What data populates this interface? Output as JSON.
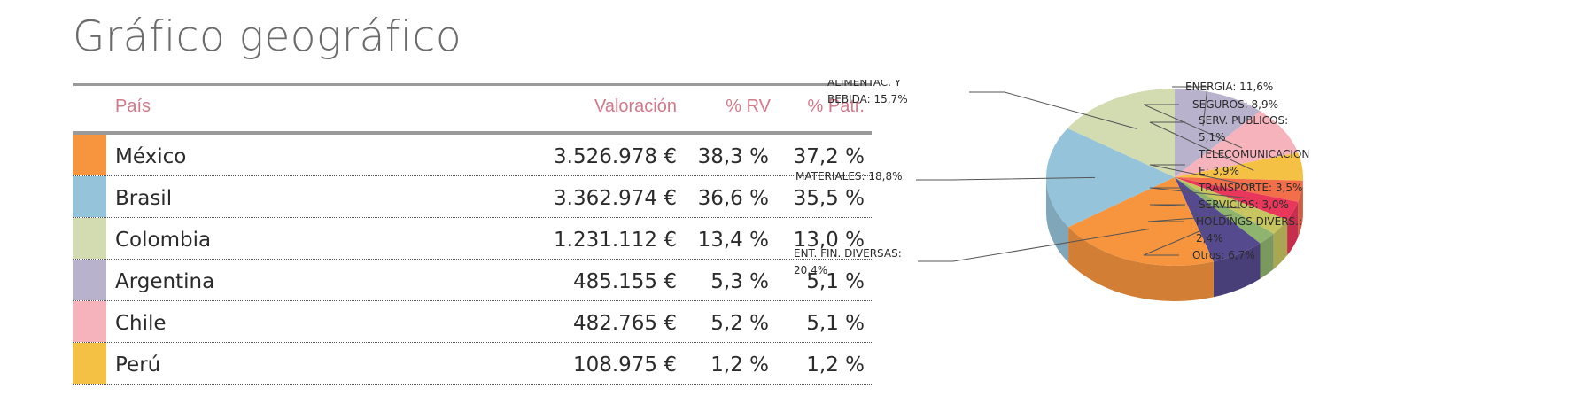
{
  "title": "Gráfico geográfico",
  "table": {
    "headers": {
      "country": "País",
      "valuation": "Valoración",
      "pct_rv": "% RV",
      "pct_patr": "% Patr."
    },
    "rows": [
      {
        "country": "México",
        "valuation": "3.526.978 €",
        "pct_rv": "38,3 %",
        "pct_patr": "37,2 %",
        "color": "#f7953e"
      },
      {
        "country": "Brasil",
        "valuation": "3.362.974 €",
        "pct_rv": "36,6 %",
        "pct_patr": "35,5 %",
        "color": "#95c3da"
      },
      {
        "country": "Colombia",
        "valuation": "1.231.112 €",
        "pct_rv": "13,4 %",
        "pct_patr": "13,0 %",
        "color": "#d3dbb0"
      },
      {
        "country": "Argentina",
        "valuation": "485.155 €",
        "pct_rv": "5,3 %",
        "pct_patr": "5,1 %",
        "color": "#b8b2cc"
      },
      {
        "country": "Chile",
        "valuation": "482.765 €",
        "pct_rv": "5,2 %",
        "pct_patr": "5,1 %",
        "color": "#f6b3bc"
      },
      {
        "country": "Perú",
        "valuation": "108.975 €",
        "pct_rv": "1,2 %",
        "pct_patr": "1,2 %",
        "color": "#f4c144"
      }
    ]
  },
  "chart_data": {
    "type": "pie",
    "slices": [
      {
        "label": [
          "ENERGIA: 11,6%"
        ],
        "value": 11.6,
        "color": "#b8b2cc"
      },
      {
        "label": [
          "SEGUROS: 8,9%"
        ],
        "value": 8.9,
        "color": "#f6b3bc"
      },
      {
        "label": [
          "SERV. PUBLICOS:",
          "5,1%"
        ],
        "value": 5.1,
        "color": "#f4c144"
      },
      {
        "label": [
          "TELECOMUNICACION",
          "E: 3,9%"
        ],
        "value": 3.9,
        "color": "#f26f4a"
      },
      {
        "label": [
          "TRANSPORTE: 3,5%"
        ],
        "value": 3.5,
        "color": "#e8375a"
      },
      {
        "label": [
          "SERVICIOS: 3,0%"
        ],
        "value": 3.0,
        "color": "#c7c560"
      },
      {
        "label": [
          "HOLDINGS DIVERS.:",
          "2,4%"
        ],
        "value": 2.4,
        "color": "#8fb46e"
      },
      {
        "label": [
          "Otros: 6,7%"
        ],
        "value": 6.7,
        "color": "#554a8e"
      },
      {
        "label": [
          "ENT. FIN. DIVERSAS:",
          "20,4%"
        ],
        "value": 20.4,
        "color": "#f7953e"
      },
      {
        "label": [
          "MATERIALES: 18,8%"
        ],
        "value": 18.8,
        "color": "#95c3da"
      },
      {
        "label": [
          "ALIMENTAC. Y",
          "BEBIDA: 15,7%"
        ],
        "value": 15.7,
        "color": "#d3dbb0"
      }
    ]
  }
}
